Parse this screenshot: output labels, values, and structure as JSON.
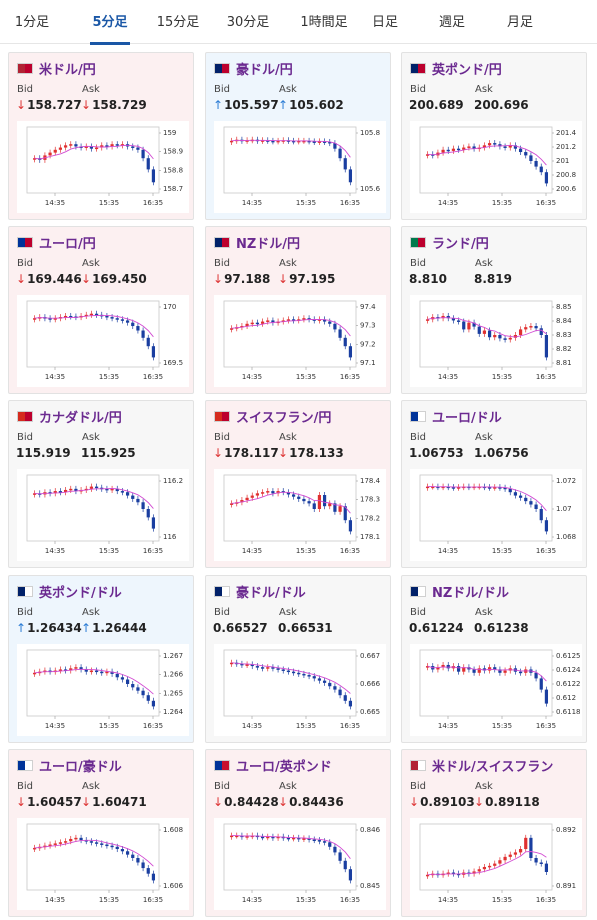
{
  "tabs": [
    {
      "label": "1分足",
      "active": false
    },
    {
      "label": "5分足",
      "active": true
    },
    {
      "label": "15分足",
      "active": false
    },
    {
      "label": "30分足",
      "active": false
    },
    {
      "label": "1時間足",
      "active": false
    },
    {
      "label": "日足",
      "active": false
    },
    {
      "label": "週足",
      "active": false
    },
    {
      "label": "月足",
      "active": false
    }
  ],
  "labels": {
    "bid": "Bid",
    "ask": "Ask"
  },
  "colors": {
    "pair_name": "#6b2a90",
    "down_arrow": "#dd3333",
    "up_arrow": "#2a7bd4",
    "candle_up": "#e03030",
    "candle_down": "#1a3ea0",
    "ma_line": "#d24bd2",
    "accent": "#1a57a6"
  },
  "pairs": [
    {
      "name": "米ドル/円",
      "flag": "US-JP",
      "theme": "pink",
      "bid": "158.727",
      "ask": "158.729",
      "bid_dir": "down",
      "ask_dir": "down",
      "x_labels": [
        "14:35",
        "15:35",
        "16:35"
      ],
      "y_ticks": [
        "159",
        "158.9",
        "158.8",
        "158.7"
      ],
      "shape": [
        0.55,
        0.52,
        0.6,
        0.65,
        0.7,
        0.74,
        0.78,
        0.8,
        0.76,
        0.74,
        0.76,
        0.72,
        0.74,
        0.78,
        0.76,
        0.8,
        0.78,
        0.8,
        0.76,
        0.74,
        0.7,
        0.55,
        0.35,
        0.12
      ]
    },
    {
      "name": "豪ドル/円",
      "flag": "AU-JP",
      "theme": "blue",
      "bid": "105.597",
      "ask": "105.602",
      "bid_dir": "up",
      "ask_dir": "up",
      "x_labels": [
        "14:35",
        "15:35",
        "16:35"
      ],
      "y_ticks": [
        "105.8",
        "105.6"
      ],
      "shape": [
        0.86,
        0.88,
        0.86,
        0.87,
        0.88,
        0.86,
        0.87,
        0.86,
        0.85,
        0.86,
        0.87,
        0.86,
        0.85,
        0.86,
        0.86,
        0.85,
        0.84,
        0.85,
        0.84,
        0.82,
        0.72,
        0.55,
        0.35,
        0.12
      ]
    },
    {
      "name": "英ポンド/円",
      "flag": "GB-JP",
      "theme": "gray",
      "bid": "200.689",
      "ask": "200.696",
      "bid_dir": "none",
      "ask_dir": "none",
      "x_labels": [
        "14:35",
        "15:35",
        "16:35"
      ],
      "y_ticks": [
        "201.4",
        "201.2",
        "201",
        "200.8",
        "200.6"
      ],
      "shape": [
        0.62,
        0.6,
        0.65,
        0.7,
        0.68,
        0.72,
        0.7,
        0.74,
        0.76,
        0.72,
        0.74,
        0.78,
        0.82,
        0.8,
        0.76,
        0.74,
        0.78,
        0.72,
        0.66,
        0.6,
        0.5,
        0.4,
        0.3,
        0.1
      ]
    },
    {
      "name": "ユーロ/円",
      "flag": "EU-JP",
      "theme": "pink",
      "bid": "169.446",
      "ask": "169.450",
      "bid_dir": "down",
      "ask_dir": "down",
      "x_labels": [
        "14:35",
        "15:35",
        "16:35"
      ],
      "y_ticks": [
        "170",
        "169.5"
      ],
      "shape": [
        0.8,
        0.82,
        0.8,
        0.78,
        0.8,
        0.82,
        0.84,
        0.83,
        0.82,
        0.84,
        0.86,
        0.88,
        0.86,
        0.84,
        0.82,
        0.8,
        0.78,
        0.76,
        0.72,
        0.66,
        0.58,
        0.45,
        0.3,
        0.1
      ]
    },
    {
      "name": "NZドル/円",
      "flag": "NZ-JP",
      "theme": "pink",
      "bid": "97.188",
      "ask": "97.195",
      "bid_dir": "down",
      "ask_dir": "down",
      "x_labels": [
        "14:35",
        "15:35",
        "16:35"
      ],
      "y_ticks": [
        "97.4",
        "97.3",
        "97.2",
        "97.1"
      ],
      "shape": [
        0.62,
        0.64,
        0.66,
        0.7,
        0.72,
        0.7,
        0.74,
        0.76,
        0.72,
        0.74,
        0.76,
        0.78,
        0.76,
        0.78,
        0.8,
        0.78,
        0.76,
        0.78,
        0.74,
        0.7,
        0.6,
        0.45,
        0.3,
        0.1
      ]
    },
    {
      "name": "ランド/円",
      "flag": "ZA-JP",
      "theme": "gray",
      "bid": "8.810",
      "ask": "8.819",
      "bid_dir": "none",
      "ask_dir": "none",
      "x_labels": [
        "14:35",
        "15:35",
        "16:35"
      ],
      "y_ticks": [
        "8.85",
        "8.84",
        "8.83",
        "8.82",
        "8.81"
      ],
      "shape": [
        0.78,
        0.82,
        0.8,
        0.84,
        0.8,
        0.76,
        0.74,
        0.6,
        0.72,
        0.65,
        0.52,
        0.58,
        0.46,
        0.5,
        0.44,
        0.42,
        0.45,
        0.5,
        0.6,
        0.64,
        0.66,
        0.62,
        0.5,
        0.1
      ]
    },
    {
      "name": "カナダドル/円",
      "flag": "CA-JP",
      "theme": "gray",
      "bid": "115.919",
      "ask": "115.925",
      "bid_dir": "none",
      "ask_dir": "none",
      "x_labels": [
        "14:35",
        "15:35",
        "16:35"
      ],
      "y_ticks": [
        "116.2",
        "116"
      ],
      "shape": [
        0.78,
        0.76,
        0.8,
        0.78,
        0.82,
        0.8,
        0.84,
        0.86,
        0.82,
        0.84,
        0.86,
        0.9,
        0.88,
        0.86,
        0.84,
        0.86,
        0.82,
        0.8,
        0.74,
        0.68,
        0.62,
        0.5,
        0.35,
        0.15
      ]
    },
    {
      "name": "スイスフラン/円",
      "flag": "CH-JP",
      "theme": "pink",
      "bid": "178.117",
      "ask": "178.133",
      "bid_dir": "down",
      "ask_dir": "down",
      "x_labels": [
        "14:35",
        "15:35",
        "16:35"
      ],
      "y_ticks": [
        "178.4",
        "178.3",
        "178.2",
        "178.1"
      ],
      "shape": [
        0.6,
        0.62,
        0.66,
        0.7,
        0.74,
        0.78,
        0.8,
        0.82,
        0.78,
        0.82,
        0.8,
        0.76,
        0.72,
        0.68,
        0.64,
        0.6,
        0.5,
        0.75,
        0.55,
        0.6,
        0.45,
        0.55,
        0.3,
        0.1
      ]
    },
    {
      "name": "ユーロ/ドル",
      "flag": "EU-US",
      "theme": "gray",
      "bid": "1.06753",
      "ask": "1.06756",
      "bid_dir": "none",
      "ask_dir": "none",
      "x_labels": [
        "14:35",
        "15:35",
        "16:35"
      ],
      "y_ticks": [
        "1.072",
        "1.07",
        "1.068"
      ],
      "shape": [
        0.9,
        0.9,
        0.89,
        0.9,
        0.89,
        0.88,
        0.89,
        0.9,
        0.89,
        0.9,
        0.9,
        0.89,
        0.88,
        0.89,
        0.88,
        0.86,
        0.8,
        0.74,
        0.7,
        0.64,
        0.58,
        0.5,
        0.3,
        0.1
      ]
    },
    {
      "name": "英ポンド/ドル",
      "flag": "GB-US",
      "theme": "blue",
      "bid": "1.26434",
      "ask": "1.26444",
      "bid_dir": "up",
      "ask_dir": "up",
      "x_labels": [
        "14:35",
        "15:35",
        "16:35"
      ],
      "y_ticks": [
        "1.267",
        "1.266",
        "1.265",
        "1.264"
      ],
      "shape": [
        0.7,
        0.72,
        0.74,
        0.72,
        0.74,
        0.76,
        0.74,
        0.78,
        0.8,
        0.76,
        0.72,
        0.74,
        0.72,
        0.7,
        0.72,
        0.68,
        0.62,
        0.58,
        0.5,
        0.44,
        0.38,
        0.3,
        0.2,
        0.1
      ]
    },
    {
      "name": "豪ドル/ドル",
      "flag": "AU-US",
      "theme": "gray",
      "bid": "0.66527",
      "ask": "0.66531",
      "bid_dir": "none",
      "ask_dir": "none",
      "x_labels": [
        "14:35",
        "15:35",
        "16:35"
      ],
      "y_ticks": [
        "0.667",
        "0.666",
        "0.665"
      ],
      "shape": [
        0.88,
        0.86,
        0.84,
        0.85,
        0.82,
        0.8,
        0.78,
        0.8,
        0.78,
        0.76,
        0.74,
        0.72,
        0.7,
        0.68,
        0.66,
        0.64,
        0.6,
        0.56,
        0.52,
        0.46,
        0.4,
        0.3,
        0.2,
        0.1
      ]
    },
    {
      "name": "NZドル/ドル",
      "flag": "NZ-US",
      "theme": "gray",
      "bid": "0.61224",
      "ask": "0.61238",
      "bid_dir": "none",
      "ask_dir": "none",
      "x_labels": [
        "14:35",
        "15:35",
        "16:35"
      ],
      "y_ticks": [
        "0.6125",
        "0.6124",
        "0.6122",
        "0.612",
        "0.6118"
      ],
      "shape": [
        0.82,
        0.76,
        0.8,
        0.84,
        0.78,
        0.82,
        0.72,
        0.8,
        0.76,
        0.7,
        0.78,
        0.74,
        0.8,
        0.76,
        0.7,
        0.74,
        0.78,
        0.72,
        0.7,
        0.76,
        0.7,
        0.6,
        0.4,
        0.15
      ]
    },
    {
      "name": "ユーロ/豪ドル",
      "flag": "EU-AU",
      "theme": "pink",
      "bid": "1.60457",
      "ask": "1.60471",
      "bid_dir": "down",
      "ask_dir": "down",
      "x_labels": [
        "14:35",
        "15:35",
        "16:35"
      ],
      "y_ticks": [
        "1.608",
        "1.606"
      ],
      "shape": [
        0.68,
        0.7,
        0.72,
        0.74,
        0.76,
        0.78,
        0.8,
        0.84,
        0.86,
        0.82,
        0.8,
        0.78,
        0.76,
        0.74,
        0.72,
        0.7,
        0.66,
        0.62,
        0.56,
        0.5,
        0.42,
        0.32,
        0.22,
        0.1
      ]
    },
    {
      "name": "ユーロ/英ポンド",
      "flag": "EU-GB",
      "theme": "pink",
      "bid": "0.84428",
      "ask": "0.84436",
      "bid_dir": "down",
      "ask_dir": "down",
      "x_labels": [
        "14:35",
        "15:35",
        "16:35"
      ],
      "y_ticks": [
        "0.846",
        "0.845"
      ],
      "shape": [
        0.9,
        0.9,
        0.88,
        0.89,
        0.9,
        0.88,
        0.87,
        0.88,
        0.86,
        0.88,
        0.86,
        0.85,
        0.86,
        0.84,
        0.85,
        0.83,
        0.82,
        0.8,
        0.78,
        0.7,
        0.6,
        0.45,
        0.3,
        0.1
      ]
    },
    {
      "name": "米ドル/スイスフラン",
      "flag": "US-CH",
      "theme": "pink",
      "bid": "0.89103",
      "ask": "0.89118",
      "bid_dir": "down",
      "ask_dir": "down",
      "x_labels": [
        "14:35",
        "15:35",
        "16:35"
      ],
      "y_ticks": [
        "0.892",
        "0.891"
      ],
      "shape": [
        0.2,
        0.22,
        0.2,
        0.22,
        0.24,
        0.22,
        0.2,
        0.24,
        0.22,
        0.26,
        0.3,
        0.34,
        0.36,
        0.4,
        0.46,
        0.52,
        0.56,
        0.6,
        0.66,
        0.86,
        0.5,
        0.42,
        0.4,
        0.25
      ]
    }
  ]
}
